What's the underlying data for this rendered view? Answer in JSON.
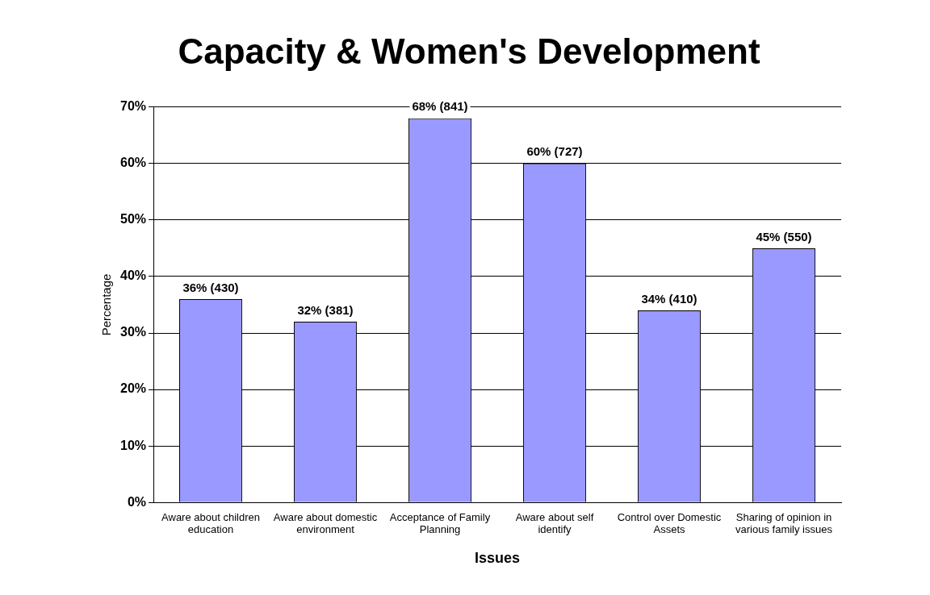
{
  "chart_data": {
    "type": "bar",
    "title": "Capacity & Women's Development",
    "xlabel": "Issues",
    "ylabel": "Percentage",
    "categories": [
      "Aware about children education",
      "Aware about domestic environment",
      "Acceptance of Family Planning",
      "Aware about self identify",
      "Control over Domestic Assets",
      "Sharing of opinion in various family issues"
    ],
    "values": [
      36,
      32,
      68,
      60,
      34,
      45
    ],
    "value_labels": [
      "36% (430)",
      "32% (381)",
      "68% (841)",
      "60% (727)",
      "34% (410)",
      "45% (550)"
    ],
    "color": "#9999ff",
    "ylim": [
      0,
      70
    ],
    "yticks": [
      {
        "value": 0,
        "label": "0%"
      },
      {
        "value": 10,
        "label": "10%"
      },
      {
        "value": 20,
        "label": "20%"
      },
      {
        "value": 30,
        "label": "30%"
      },
      {
        "value": 40,
        "label": "40%"
      },
      {
        "value": 50,
        "label": "50%"
      },
      {
        "value": 60,
        "label": "60%"
      },
      {
        "value": 70,
        "label": "70%"
      }
    ],
    "grid": "y",
    "legend": false
  }
}
